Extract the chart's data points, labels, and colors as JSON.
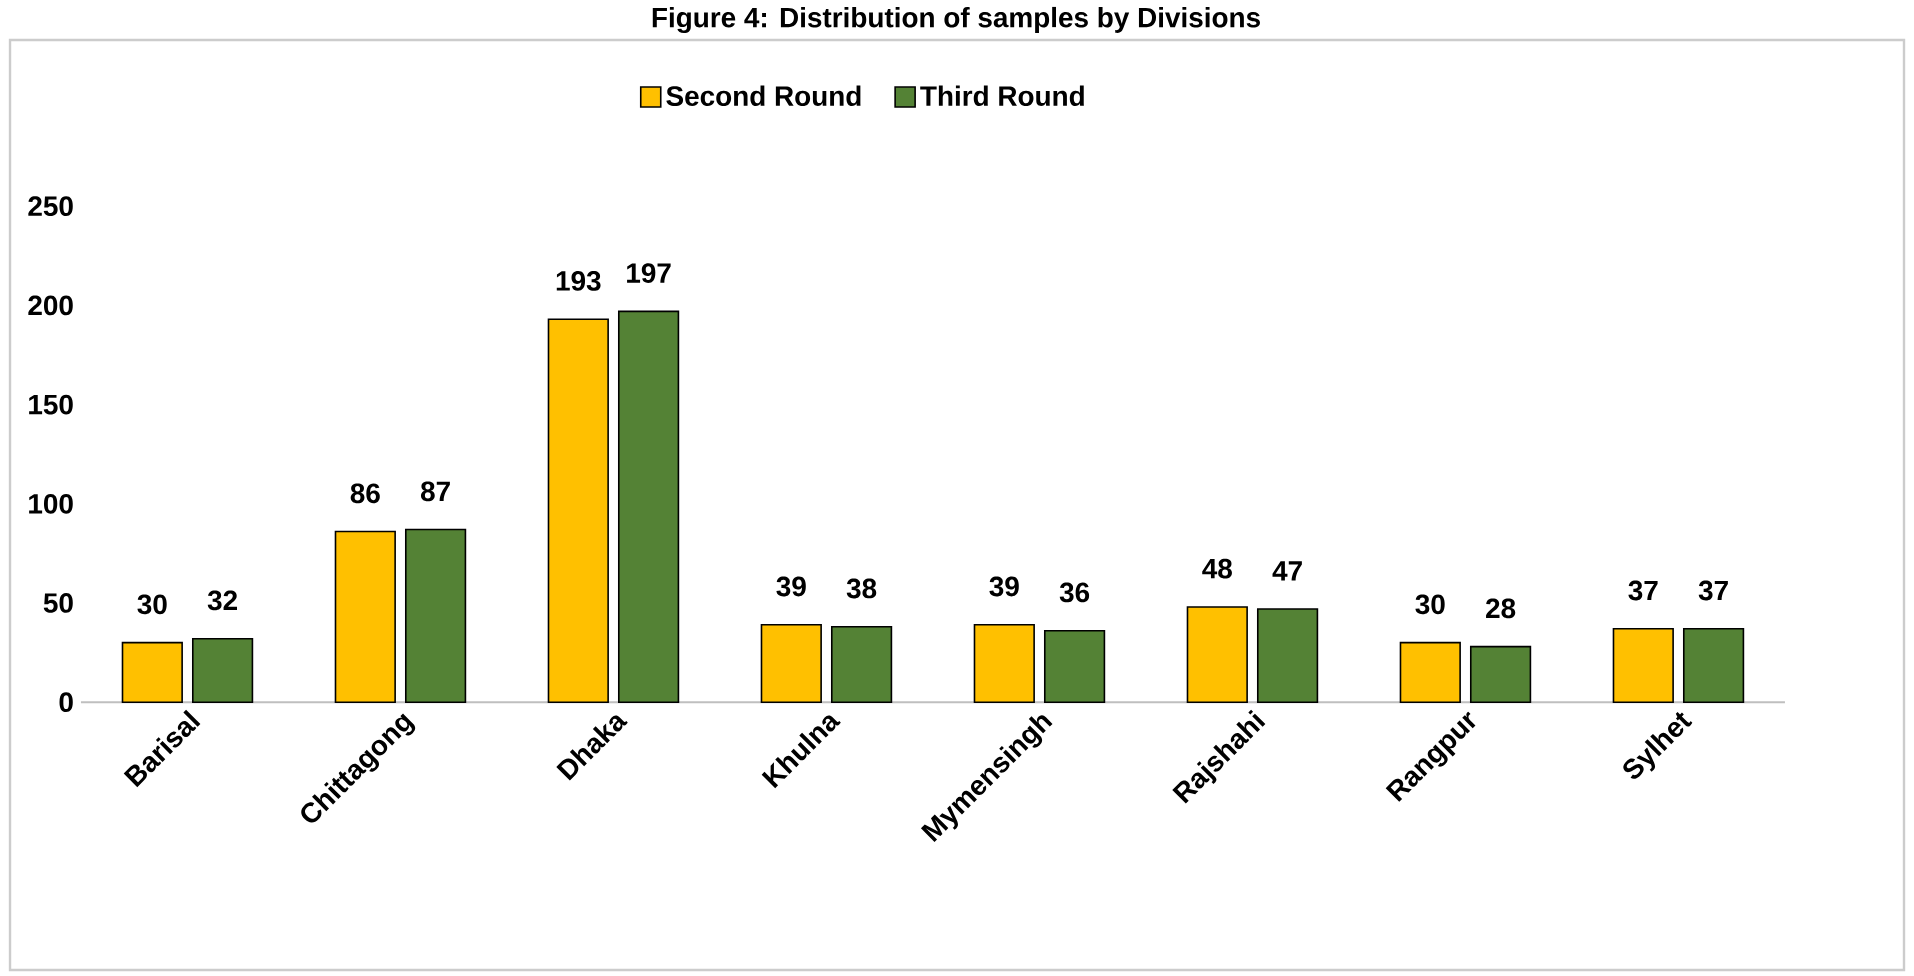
{
  "chart_data": {
    "type": "bar",
    "title": "Figure 4: Distribution of samples by Divisions",
    "categories": [
      "Barisal",
      "Chittagong",
      "Dhaka",
      "Khulna",
      "Mymensingh",
      "Rajshahi",
      "Rangpur",
      "Sylhet"
    ],
    "series": [
      {
        "name": "Second Round",
        "color": "#ffc000",
        "values": [
          30,
          86,
          193,
          39,
          39,
          48,
          30,
          37
        ]
      },
      {
        "name": "Third Round",
        "color": "#548235",
        "values": [
          32,
          87,
          197,
          38,
          36,
          47,
          28,
          37
        ]
      }
    ],
    "ylim": [
      0,
      250
    ],
    "yticks": [
      0,
      50,
      100,
      150,
      200,
      250
    ],
    "data_labels": true,
    "legend": "top"
  }
}
